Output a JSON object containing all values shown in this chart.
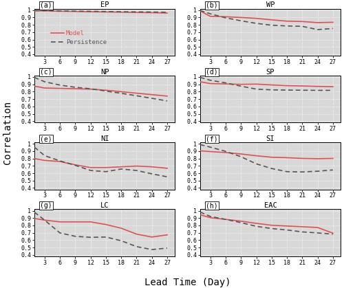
{
  "x": [
    1,
    3,
    6,
    9,
    12,
    15,
    18,
    21,
    24,
    27
  ],
  "panels": [
    {
      "label": "a",
      "title": "EP",
      "model": [
        0.99,
        0.99,
        0.985,
        0.982,
        0.978,
        0.975,
        0.972,
        0.968,
        0.965,
        0.96
      ],
      "persistence": [
        0.995,
        0.993,
        0.989,
        0.986,
        0.984,
        0.981,
        0.978,
        0.976,
        0.974,
        0.97
      ]
    },
    {
      "label": "b",
      "title": "WP",
      "model": [
        0.99,
        0.915,
        0.91,
        0.9,
        0.888,
        0.868,
        0.85,
        0.845,
        0.83,
        0.835
      ],
      "persistence": [
        0.995,
        0.95,
        0.895,
        0.855,
        0.82,
        0.795,
        0.785,
        0.78,
        0.735,
        0.75
      ]
    },
    {
      "label": "c",
      "title": "NP",
      "model": [
        0.875,
        0.85,
        0.845,
        0.84,
        0.835,
        0.82,
        0.8,
        0.78,
        0.76,
        0.74
      ],
      "persistence": [
        0.995,
        0.935,
        0.89,
        0.86,
        0.84,
        0.808,
        0.778,
        0.745,
        0.71,
        0.675
      ]
    },
    {
      "label": "d",
      "title": "SP",
      "model": [
        0.935,
        0.91,
        0.905,
        0.9,
        0.903,
        0.892,
        0.882,
        0.878,
        0.872,
        0.868
      ],
      "persistence": [
        0.995,
        0.955,
        0.92,
        0.875,
        0.835,
        0.825,
        0.822,
        0.82,
        0.818,
        0.818
      ]
    },
    {
      "label": "e",
      "title": "NI",
      "model": [
        0.8,
        0.775,
        0.76,
        0.715,
        0.678,
        0.678,
        0.688,
        0.698,
        0.688,
        0.668
      ],
      "persistence": [
        0.955,
        0.84,
        0.768,
        0.708,
        0.638,
        0.622,
        0.658,
        0.638,
        0.592,
        0.552
      ]
    },
    {
      "label": "f",
      "title": "SI",
      "model": [
        0.905,
        0.895,
        0.882,
        0.862,
        0.838,
        0.818,
        0.812,
        0.802,
        0.798,
        0.802
      ],
      "persistence": [
        0.99,
        0.955,
        0.898,
        0.825,
        0.728,
        0.665,
        0.622,
        0.618,
        0.628,
        0.645
      ]
    },
    {
      "label": "g",
      "title": "LC",
      "model": [
        0.895,
        0.872,
        0.848,
        0.848,
        0.848,
        0.812,
        0.762,
        0.682,
        0.642,
        0.672
      ],
      "persistence": [
        0.98,
        0.872,
        0.698,
        0.652,
        0.638,
        0.642,
        0.592,
        0.512,
        0.472,
        0.492
      ]
    },
    {
      "label": "h",
      "title": "EAC",
      "model": [
        0.945,
        0.905,
        0.882,
        0.858,
        0.828,
        0.802,
        0.792,
        0.782,
        0.772,
        0.695
      ],
      "persistence": [
        0.982,
        0.922,
        0.882,
        0.838,
        0.788,
        0.758,
        0.738,
        0.712,
        0.698,
        0.682
      ]
    }
  ],
  "xticks": [
    3,
    6,
    9,
    12,
    15,
    18,
    21,
    24,
    27
  ],
  "yticks": [
    0.4,
    0.5,
    0.6,
    0.7,
    0.8,
    0.9,
    1.0
  ],
  "ylim": [
    0.38,
    1.02
  ],
  "xlim": [
    1,
    28.5
  ],
  "model_color": "#e05050",
  "persistence_color": "#555555",
  "bg_color": "#d8d8d8",
  "grid_color": "#ffffff",
  "ylabel": "Correlation",
  "xlabel": "Lead Time (Day)",
  "legend_model": "Model",
  "legend_persistence": "Persistence"
}
